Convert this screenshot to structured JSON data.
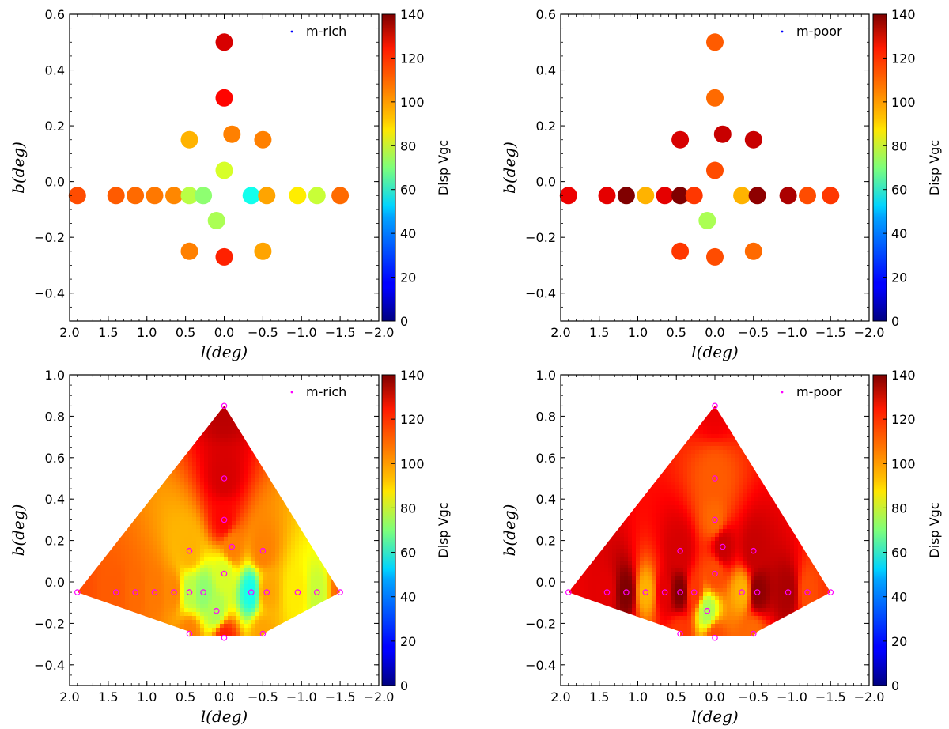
{
  "chart_data": [
    {
      "type": "scatter",
      "id": "top-left",
      "legend": "m-rich",
      "marker": "dot-blue",
      "xlabel": "l(deg)",
      "ylabel": "b(deg)",
      "xlim": [
        2.0,
        -2.0
      ],
      "ylim": [
        -0.5,
        0.6
      ],
      "xticks": [
        2.0,
        1.5,
        1.0,
        0.5,
        0.0,
        -0.5,
        -1.0,
        -1.5,
        -2.0
      ],
      "xticklabels": [
        "2.0",
        "1.5",
        "1.0",
        "0.5",
        "0.0",
        "−0.5",
        "−1.0",
        "−1.5",
        "−2.0"
      ],
      "yticks": [
        0.6,
        0.4,
        0.2,
        0.0,
        -0.2,
        -0.4
      ],
      "yticklabels": [
        "0.6",
        "0.4",
        "0.2",
        "0.0",
        "−0.2",
        "−0.4"
      ],
      "colorbar": {
        "label": "Disp Vgc",
        "min": 0,
        "max": 140,
        "ticks": [
          0,
          20,
          40,
          60,
          80,
          100,
          120,
          140
        ]
      },
      "points": [
        {
          "l": 0.0,
          "b": 0.5,
          "v": 128
        },
        {
          "l": 0.0,
          "b": 0.3,
          "v": 122
        },
        {
          "l": 0.45,
          "b": 0.15,
          "v": 98
        },
        {
          "l": -0.1,
          "b": 0.17,
          "v": 105
        },
        {
          "l": -0.5,
          "b": 0.15,
          "v": 105
        },
        {
          "l": 0.0,
          "b": 0.04,
          "v": 82
        },
        {
          "l": 1.9,
          "b": -0.05,
          "v": 112
        },
        {
          "l": 1.4,
          "b": -0.05,
          "v": 110
        },
        {
          "l": 1.15,
          "b": -0.05,
          "v": 108
        },
        {
          "l": 0.9,
          "b": -0.05,
          "v": 106
        },
        {
          "l": 0.65,
          "b": -0.05,
          "v": 104
        },
        {
          "l": 0.45,
          "b": -0.05,
          "v": 78
        },
        {
          "l": 0.27,
          "b": -0.05,
          "v": 72
        },
        {
          "l": -0.35,
          "b": -0.05,
          "v": 55
        },
        {
          "l": -0.55,
          "b": -0.05,
          "v": 100
        },
        {
          "l": -0.95,
          "b": -0.05,
          "v": 90
        },
        {
          "l": -1.2,
          "b": -0.05,
          "v": 80
        },
        {
          "l": -1.5,
          "b": -0.05,
          "v": 108
        },
        {
          "l": 0.1,
          "b": -0.14,
          "v": 76
        },
        {
          "l": 0.45,
          "b": -0.25,
          "v": 105
        },
        {
          "l": 0.0,
          "b": -0.27,
          "v": 118
        },
        {
          "l": -0.5,
          "b": -0.25,
          "v": 100
        }
      ]
    },
    {
      "type": "scatter",
      "id": "top-right",
      "legend": "m-poor",
      "marker": "dot-blue",
      "xlabel": "l(deg)",
      "ylabel": "b(deg)",
      "xlim": [
        2.0,
        -2.0
      ],
      "ylim": [
        -0.5,
        0.6
      ],
      "xticks": [
        2.0,
        1.5,
        1.0,
        0.5,
        0.0,
        -0.5,
        -1.0,
        -1.5,
        -2.0
      ],
      "xticklabels": [
        "2.0",
        "1.5",
        "1.0",
        "0.5",
        "0.0",
        "−0.5",
        "−1.0",
        "−1.5",
        "−2.0"
      ],
      "yticks": [
        0.6,
        0.4,
        0.2,
        0.0,
        -0.2,
        -0.4
      ],
      "yticklabels": [
        "0.6",
        "0.4",
        "0.2",
        "0.0",
        "−0.2",
        "−0.4"
      ],
      "colorbar": {
        "label": "Disp Vgc",
        "min": 0,
        "max": 140,
        "ticks": [
          0,
          20,
          40,
          60,
          80,
          100,
          120,
          140
        ]
      },
      "points": [
        {
          "l": 0.0,
          "b": 0.5,
          "v": 110
        },
        {
          "l": 0.0,
          "b": 0.3,
          "v": 108
        },
        {
          "l": 0.45,
          "b": 0.15,
          "v": 128
        },
        {
          "l": -0.1,
          "b": 0.17,
          "v": 130
        },
        {
          "l": -0.5,
          "b": 0.15,
          "v": 130
        },
        {
          "l": 0.0,
          "b": 0.04,
          "v": 112
        },
        {
          "l": 1.9,
          "b": -0.05,
          "v": 125
        },
        {
          "l": 1.4,
          "b": -0.05,
          "v": 126
        },
        {
          "l": 1.15,
          "b": -0.05,
          "v": 140
        },
        {
          "l": 0.9,
          "b": -0.05,
          "v": 98
        },
        {
          "l": 0.65,
          "b": -0.05,
          "v": 126
        },
        {
          "l": 0.45,
          "b": -0.05,
          "v": 140
        },
        {
          "l": 0.27,
          "b": -0.05,
          "v": 115
        },
        {
          "l": -0.35,
          "b": -0.05,
          "v": 98
        },
        {
          "l": -0.55,
          "b": -0.05,
          "v": 138
        },
        {
          "l": -0.95,
          "b": -0.05,
          "v": 134
        },
        {
          "l": -1.2,
          "b": -0.05,
          "v": 112
        },
        {
          "l": -1.5,
          "b": -0.05,
          "v": 115
        },
        {
          "l": 0.1,
          "b": -0.14,
          "v": 76
        },
        {
          "l": 0.45,
          "b": -0.25,
          "v": 115
        },
        {
          "l": 0.0,
          "b": -0.27,
          "v": 112
        },
        {
          "l": -0.5,
          "b": -0.25,
          "v": 108
        }
      ]
    },
    {
      "type": "heatmap",
      "id": "bottom-left",
      "legend": "m-rich",
      "marker": "open-circle-magenta",
      "xlabel": "l(deg)",
      "ylabel": "b(deg)",
      "xlim": [
        2.0,
        -2.0
      ],
      "ylim": [
        -0.5,
        1.0
      ],
      "xticks": [
        2.0,
        1.5,
        1.0,
        0.5,
        0.0,
        -0.5,
        -1.0,
        -1.5,
        -2.0
      ],
      "xticklabels": [
        "2.0",
        "1.5",
        "1.0",
        "0.5",
        "0.0",
        "−0.5",
        "−1.0",
        "−1.5",
        "−2.0"
      ],
      "yticks": [
        1.0,
        0.8,
        0.6,
        0.4,
        0.2,
        0.0,
        -0.2,
        -0.4
      ],
      "yticklabels": [
        "1.0",
        "0.8",
        "0.6",
        "0.4",
        "0.2",
        "0.0",
        "−0.2",
        "−0.4"
      ],
      "colorbar": {
        "label": "Disp Vgc",
        "min": 0,
        "max": 140,
        "ticks": [
          0,
          20,
          40,
          60,
          80,
          100,
          120,
          140
        ]
      },
      "points": [
        {
          "l": 0.0,
          "b": 0.85,
          "v": 132
        },
        {
          "l": 0.0,
          "b": 0.5,
          "v": 128
        },
        {
          "l": 0.0,
          "b": 0.3,
          "v": 122
        },
        {
          "l": 0.45,
          "b": 0.15,
          "v": 98
        },
        {
          "l": -0.1,
          "b": 0.17,
          "v": 105
        },
        {
          "l": -0.5,
          "b": 0.15,
          "v": 105
        },
        {
          "l": 0.0,
          "b": 0.04,
          "v": 82
        },
        {
          "l": 1.9,
          "b": -0.05,
          "v": 112
        },
        {
          "l": 1.4,
          "b": -0.05,
          "v": 110
        },
        {
          "l": 1.15,
          "b": -0.05,
          "v": 108
        },
        {
          "l": 0.9,
          "b": -0.05,
          "v": 106
        },
        {
          "l": 0.65,
          "b": -0.05,
          "v": 104
        },
        {
          "l": 0.45,
          "b": -0.05,
          "v": 78
        },
        {
          "l": 0.27,
          "b": -0.05,
          "v": 72
        },
        {
          "l": -0.35,
          "b": -0.05,
          "v": 55
        },
        {
          "l": -0.55,
          "b": -0.05,
          "v": 100
        },
        {
          "l": -0.95,
          "b": -0.05,
          "v": 90
        },
        {
          "l": -1.2,
          "b": -0.05,
          "v": 80
        },
        {
          "l": -1.5,
          "b": -0.05,
          "v": 108
        },
        {
          "l": 0.1,
          "b": -0.14,
          "v": 76
        },
        {
          "l": 0.45,
          "b": -0.25,
          "v": 105
        },
        {
          "l": 0.0,
          "b": -0.27,
          "v": 118
        },
        {
          "l": -0.5,
          "b": -0.25,
          "v": 100
        }
      ]
    },
    {
      "type": "heatmap",
      "id": "bottom-right",
      "legend": "m-poor",
      "marker": "open-circle-magenta",
      "xlabel": "l(deg)",
      "ylabel": "b(deg)",
      "xlim": [
        2.0,
        -2.0
      ],
      "ylim": [
        -0.5,
        1.0
      ],
      "xticks": [
        2.0,
        1.5,
        1.0,
        0.5,
        0.0,
        -0.5,
        -1.0,
        -1.5,
        -2.0
      ],
      "xticklabels": [
        "2.0",
        "1.5",
        "1.0",
        "0.5",
        "0.0",
        "−0.5",
        "−1.0",
        "−1.5",
        "−2.0"
      ],
      "yticks": [
        1.0,
        0.8,
        0.6,
        0.4,
        0.2,
        0.0,
        -0.2,
        -0.4
      ],
      "yticklabels": [
        "1.0",
        "0.8",
        "0.6",
        "0.4",
        "0.2",
        "0.0",
        "−0.2",
        "−0.4"
      ],
      "colorbar": {
        "label": "Disp Vgc",
        "min": 0,
        "max": 140,
        "ticks": [
          0,
          20,
          40,
          60,
          80,
          100,
          120,
          140
        ]
      },
      "points": [
        {
          "l": 0.0,
          "b": 0.85,
          "v": 125
        },
        {
          "l": 0.0,
          "b": 0.5,
          "v": 110
        },
        {
          "l": 0.0,
          "b": 0.3,
          "v": 108
        },
        {
          "l": 0.45,
          "b": 0.15,
          "v": 128
        },
        {
          "l": -0.1,
          "b": 0.17,
          "v": 130
        },
        {
          "l": -0.5,
          "b": 0.15,
          "v": 130
        },
        {
          "l": 0.0,
          "b": 0.04,
          "v": 112
        },
        {
          "l": 1.9,
          "b": -0.05,
          "v": 125
        },
        {
          "l": 1.4,
          "b": -0.05,
          "v": 126
        },
        {
          "l": 1.15,
          "b": -0.05,
          "v": 140
        },
        {
          "l": 0.9,
          "b": -0.05,
          "v": 98
        },
        {
          "l": 0.65,
          "b": -0.05,
          "v": 126
        },
        {
          "l": 0.45,
          "b": -0.05,
          "v": 140
        },
        {
          "l": 0.27,
          "b": -0.05,
          "v": 115
        },
        {
          "l": -0.35,
          "b": -0.05,
          "v": 98
        },
        {
          "l": -0.55,
          "b": -0.05,
          "v": 138
        },
        {
          "l": -0.95,
          "b": -0.05,
          "v": 134
        },
        {
          "l": -1.2,
          "b": -0.05,
          "v": 112
        },
        {
          "l": -1.5,
          "b": -0.05,
          "v": 115
        },
        {
          "l": 0.1,
          "b": -0.14,
          "v": 76
        },
        {
          "l": 0.45,
          "b": -0.25,
          "v": 115
        },
        {
          "l": 0.0,
          "b": -0.27,
          "v": 112
        },
        {
          "l": -0.5,
          "b": -0.25,
          "v": 108
        }
      ]
    }
  ]
}
